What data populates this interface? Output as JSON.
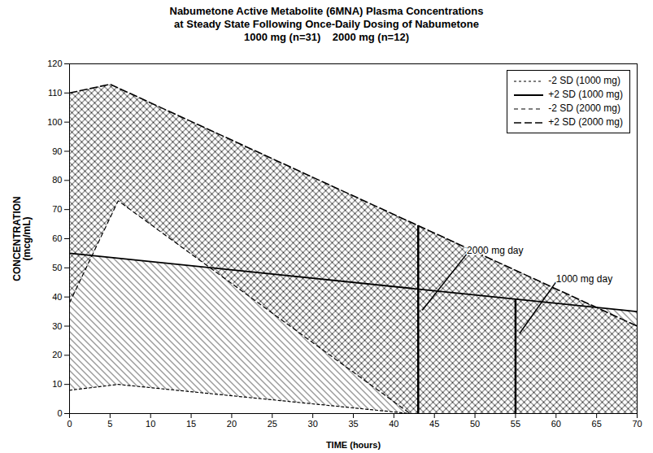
{
  "chart_data": {
    "type": "line",
    "title": "Nabumetone Active Metabolite (6MNA) Plasma Concentrations\nat Steady State Following Once-Daily Dosing of Nabumetone\n1000 mg (n=31)    2000 mg (n=12)",
    "xlabel": "TIME (hours)",
    "ylabel": "CONCENTRATION\n(mcg/mL)",
    "xlim": [
      0,
      70
    ],
    "ylim": [
      0,
      120
    ],
    "xticks": [
      0,
      5,
      10,
      15,
      20,
      25,
      30,
      35,
      40,
      45,
      50,
      55,
      60,
      65,
      70
    ],
    "yticks": [
      0,
      10,
      20,
      30,
      40,
      50,
      60,
      70,
      80,
      90,
      100,
      110,
      120
    ],
    "grid": false,
    "legend": "upper right",
    "series": [
      {
        "name": "-2 SD (1000 mg)",
        "x": [
          0,
          6,
          42
        ],
        "values": [
          8,
          10,
          0
        ],
        "color": "#000000",
        "line_style": "dotted"
      },
      {
        "name": "+2 SD (1000 mg)",
        "x": [
          0,
          70
        ],
        "values": [
          55,
          35
        ],
        "color": "#000000",
        "line_style": "solid"
      },
      {
        "name": "-2 SD (2000 mg)",
        "x": [
          0,
          6,
          42
        ],
        "values": [
          38,
          73,
          0
        ],
        "color": "#000000",
        "line_style": "dashed"
      },
      {
        "name": "+2 SD (2000 mg)",
        "x": [
          0,
          5,
          70
        ],
        "values": [
          110,
          113,
          30
        ],
        "color": "#000000",
        "line_style": "longdash"
      }
    ],
    "bands": [
      {
        "lower": "-2 SD (1000 mg)",
        "upper": "+2 SD (1000 mg)"
      },
      {
        "lower": "-2 SD (2000 mg)",
        "upper": "+2 SD (2000 mg)"
      }
    ],
    "annotations": [
      {
        "text": "2000 mg day",
        "x": 49,
        "y": 54.8053846,
        "point_x": 43.5,
        "point_y": 35.4623077,
        "line_x": 43,
        "line_y1": 0,
        "line_y2": 64.4769231
      },
      {
        "text": "1000 mg day",
        "x": 60,
        "y": 45.1785714,
        "point_x": 55.5,
        "point_y": 27.5,
        "line_x": 55,
        "line_y1": 0,
        "line_y2": 39.2857143
      }
    ]
  }
}
